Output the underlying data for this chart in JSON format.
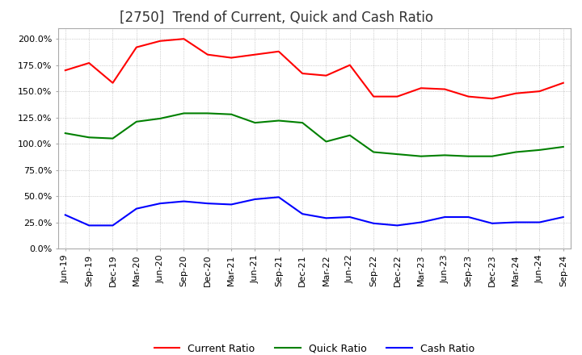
{
  "title": "[2750]  Trend of Current, Quick and Cash Ratio",
  "x_labels": [
    "Jun-19",
    "Sep-19",
    "Dec-19",
    "Mar-20",
    "Jun-20",
    "Sep-20",
    "Dec-20",
    "Mar-21",
    "Jun-21",
    "Sep-21",
    "Dec-21",
    "Mar-22",
    "Jun-22",
    "Sep-22",
    "Dec-22",
    "Mar-23",
    "Jun-23",
    "Sep-23",
    "Dec-23",
    "Mar-24",
    "Jun-24",
    "Sep-24"
  ],
  "current_ratio": [
    170.0,
    177.0,
    158.0,
    192.0,
    198.0,
    200.0,
    185.0,
    182.0,
    185.0,
    188.0,
    167.0,
    165.0,
    175.0,
    145.0,
    145.0,
    153.0,
    152.0,
    145.0,
    143.0,
    148.0,
    150.0,
    158.0
  ],
  "quick_ratio": [
    110.0,
    106.0,
    105.0,
    121.0,
    124.0,
    129.0,
    129.0,
    128.0,
    120.0,
    122.0,
    120.0,
    102.0,
    108.0,
    92.0,
    90.0,
    88.0,
    89.0,
    88.0,
    88.0,
    92.0,
    94.0,
    97.0
  ],
  "cash_ratio": [
    32.0,
    22.0,
    22.0,
    38.0,
    43.0,
    45.0,
    43.0,
    42.0,
    47.0,
    49.0,
    33.0,
    29.0,
    30.0,
    24.0,
    22.0,
    25.0,
    30.0,
    30.0,
    24.0,
    25.0,
    25.0,
    30.0
  ],
  "current_color": "#FF0000",
  "quick_color": "#008000",
  "cash_color": "#0000FF",
  "ylim": [
    0,
    210
  ],
  "yticks": [
    0,
    25,
    50,
    75,
    100,
    125,
    150,
    175,
    200
  ],
  "background_color": "#FFFFFF",
  "grid_color": "#AAAAAA",
  "title_fontsize": 12,
  "tick_fontsize": 8
}
